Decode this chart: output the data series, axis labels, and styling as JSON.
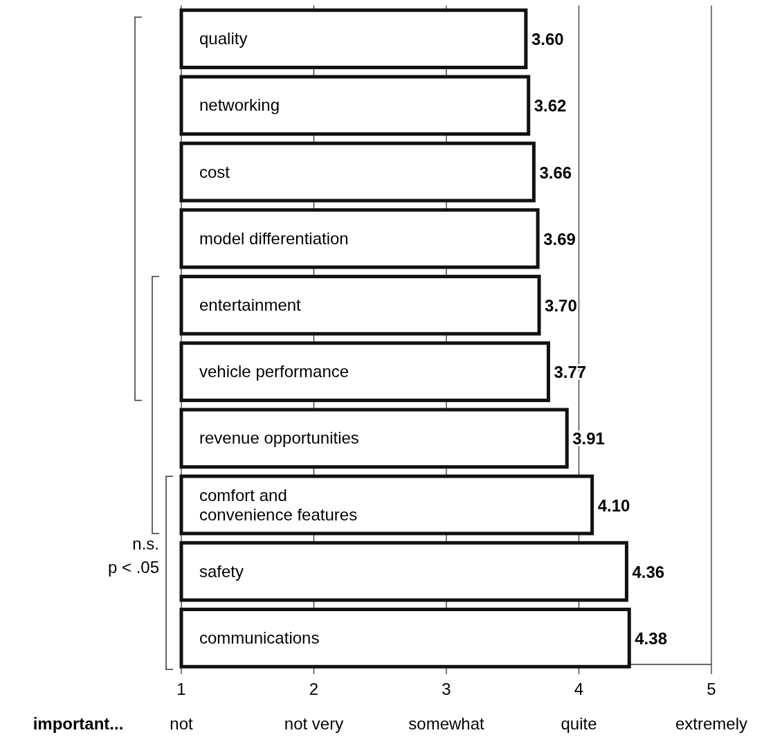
{
  "chart_data": {
    "type": "bar",
    "orientation": "horizontal",
    "categories": [
      "quality",
      "networking",
      "cost",
      "model differentiation",
      "entertainment",
      "vehicle performance",
      "revenue opportunities",
      "comfort and convenience features",
      "safety",
      "communications"
    ],
    "values": [
      3.6,
      3.62,
      3.66,
      3.69,
      3.7,
      3.77,
      3.91,
      4.1,
      4.36,
      4.38
    ],
    "value_labels": [
      "3.60",
      "3.62",
      "3.66",
      "3.69",
      "3.70",
      "3.77",
      "3.91",
      "4.10",
      "4.36",
      "4.38"
    ],
    "color": "#ffffff",
    "xlim": [
      1,
      5
    ],
    "xticks": [
      1,
      2,
      3,
      4,
      5
    ],
    "grid": "x",
    "xlabel": "important...",
    "annotations": [
      "not",
      "not very",
      "somewhat",
      "quite",
      "extremely",
      "n.s.",
      "p < .05"
    ]
  }
}
